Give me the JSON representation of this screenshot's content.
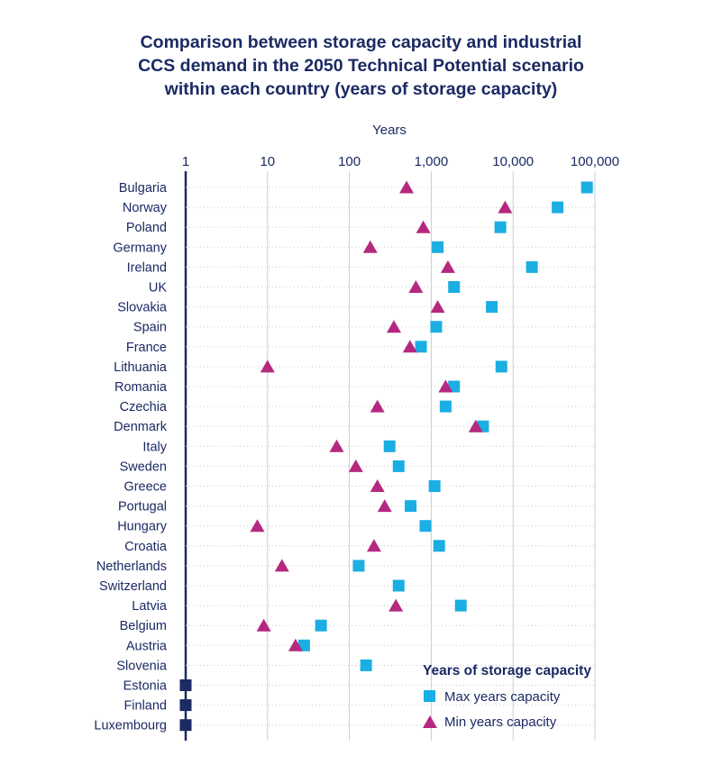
{
  "title_lines": [
    "Comparison between storage capacity and industrial",
    "CCS demand in the 2050 Technical Potential scenario",
    "within each country (years of storage capacity)"
  ],
  "colors": {
    "title": "#1b2a63",
    "axis": "#1b2a63",
    "max": "#1aaee3",
    "min": "#b5287f",
    "special": "#1b2a63",
    "grid": "#c8ccd3",
    "dotted": "#c9ccd3"
  },
  "chart_data": {
    "type": "scatter",
    "x_axis_label": "Years",
    "x_scale": "log",
    "x_range": [
      1,
      100000
    ],
    "x_ticks": [
      1,
      10,
      100,
      1000,
      10000,
      100000
    ],
    "x_tick_labels": [
      "1",
      "10",
      "100",
      "1,000",
      "10,000",
      "100,000"
    ],
    "grid": "vertical lines at 10, 100, 1,000, 10,000, 100,000; dotted row guides",
    "legend_title": "Years of storage capacity",
    "legend_position": "bottom-right",
    "categories": [
      "Bulgaria",
      "Norway",
      "Poland",
      "Germany",
      "Ireland",
      "UK",
      "Slovakia",
      "Spain",
      "France",
      "Lithuania",
      "Romania",
      "Czechia",
      "Denmark",
      "Italy",
      "Sweden",
      "Greece",
      "Portugal",
      "Hungary",
      "Croatia",
      "Netherlands",
      "Switzerland",
      "Latvia",
      "Belgium",
      "Austria",
      "Slovenia",
      "Estonia",
      "Finland",
      "Luxembourg"
    ],
    "series": [
      {
        "name": "Max years capacity",
        "marker": "square",
        "values": [
          80000,
          35000,
          7000,
          1200,
          17000,
          1900,
          5500,
          1150,
          750,
          7200,
          1900,
          1500,
          4300,
          310,
          400,
          1100,
          560,
          850,
          1250,
          130,
          400,
          2300,
          45,
          28,
          160,
          1,
          1,
          1
        ]
      },
      {
        "name": "Min years capacity",
        "marker": "triangle",
        "values": [
          500,
          8000,
          800,
          180,
          1600,
          650,
          1200,
          350,
          550,
          10,
          1500,
          220,
          3500,
          70,
          120,
          220,
          270,
          7.5,
          200,
          15,
          null,
          370,
          9,
          22,
          null,
          null,
          null,
          null
        ]
      }
    ],
    "note": "Estonia, Finland and Luxembourg shown with dark squares at 1 year"
  }
}
